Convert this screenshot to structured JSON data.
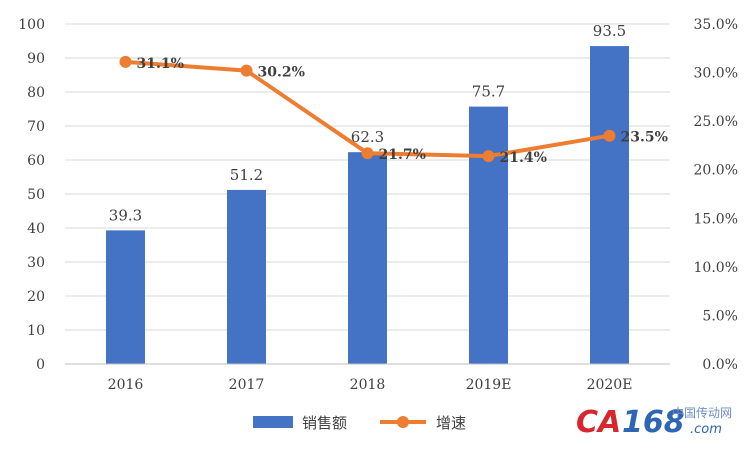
{
  "chart_data": {
    "type": "bar",
    "categories": [
      "2016",
      "2017",
      "2018",
      "2019E",
      "2020E"
    ],
    "series": [
      {
        "name": "销售额",
        "type": "bar",
        "axis": "left",
        "values": [
          39.3,
          51.2,
          62.3,
          75.7,
          93.5
        ],
        "labels": [
          "39.3",
          "51.2",
          "62.3",
          "75.7",
          "93.5"
        ],
        "color": "#4472c4"
      },
      {
        "name": "增速",
        "type": "line",
        "axis": "right",
        "values": [
          31.1,
          30.2,
          21.7,
          21.4,
          23.5
        ],
        "labels": [
          "31.1%",
          "30.2%",
          "21.7%",
          "21.4%",
          "23.5%"
        ],
        "color": "#ed7d31"
      }
    ],
    "y_left": {
      "lim": [
        0,
        100
      ],
      "ticks": [
        "0",
        "10",
        "20",
        "30",
        "40",
        "50",
        "60",
        "70",
        "80",
        "90",
        "100"
      ]
    },
    "y_right": {
      "lim": [
        0,
        35
      ],
      "ticks": [
        "0.0%",
        "5.0%",
        "10.0%",
        "15.0%",
        "20.0%",
        "25.0%",
        "30.0%",
        "35.0%"
      ]
    },
    "grid": true,
    "legend_position": "bottom"
  },
  "watermark": {
    "brand_part1": "CA",
    "brand_part2": "168",
    "domain": ".com",
    "site_name": "中国传动网"
  }
}
